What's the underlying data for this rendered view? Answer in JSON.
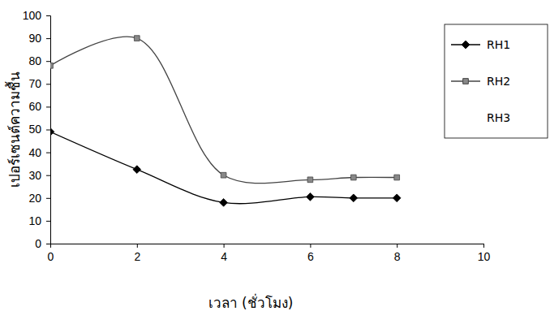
{
  "chart_data": {
    "type": "line",
    "x_label": "เวลา (ชั่วโมง)",
    "y_label": "เปอร์เซนต์ความชื้น",
    "x": [
      0,
      2,
      4,
      6,
      7,
      8
    ],
    "series": [
      {
        "name": "RH1",
        "color": "#000000",
        "marker": "diamond",
        "line_style": "solid",
        "values": [
          49,
          32.5,
          18,
          20.5,
          20,
          20
        ]
      },
      {
        "name": "RH2",
        "color": "#444444",
        "marker": "square",
        "line_style": "solid",
        "values": [
          78,
          90,
          30,
          28,
          29,
          29
        ]
      },
      {
        "name": "RH3",
        "values": [
          null,
          null,
          null,
          null,
          null,
          null
        ]
      }
    ],
    "xlim": [
      0,
      10
    ],
    "xticks": [
      0,
      2,
      4,
      6,
      8,
      10
    ],
    "ylim": [
      0,
      100
    ],
    "yticks": [
      0,
      10,
      20,
      30,
      40,
      50,
      60,
      70,
      80,
      90,
      100
    ],
    "grid": false,
    "legend": "right"
  }
}
